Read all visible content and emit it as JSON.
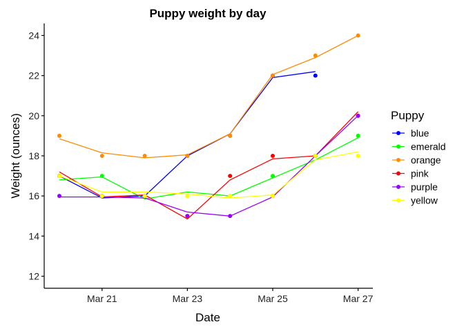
{
  "chart_data": {
    "type": "line",
    "title": "Puppy weight by day",
    "xlabel": "Date",
    "ylabel": "Weight (ounces)",
    "x": [
      "Mar 20",
      "Mar 21",
      "Mar 22",
      "Mar 23",
      "Mar 24",
      "Mar 25",
      "Mar 26",
      "Mar 27"
    ],
    "x_ticks": [
      "Mar 21",
      "Mar 23",
      "Mar 25",
      "Mar 27"
    ],
    "y_ticks": [
      12,
      14,
      16,
      18,
      20,
      22,
      24
    ],
    "ylim": [
      11.4,
      24.6
    ],
    "grid": false,
    "legend": {
      "title": "Puppy",
      "position": "right"
    },
    "series": [
      {
        "name": "blue",
        "color": "#0000ff",
        "points": [
          17,
          16,
          16,
          18,
          19,
          22,
          22,
          null
        ],
        "fit": [
          17.0,
          15.9,
          16.0,
          18.0,
          19.1,
          21.9,
          22.2,
          null
        ]
      },
      {
        "name": "emerald",
        "color": "#00ff00",
        "points": [
          17,
          17,
          16,
          16,
          16,
          17,
          18,
          19
        ],
        "fit": [
          16.8,
          16.95,
          15.85,
          16.2,
          16.0,
          16.9,
          17.8,
          18.9
        ]
      },
      {
        "name": "orange",
        "color": "#ff8c00",
        "points": [
          19,
          18,
          18,
          18,
          19,
          22,
          23,
          24
        ],
        "fit": [
          18.85,
          18.15,
          17.9,
          18.05,
          19.1,
          22.05,
          22.9,
          24.0
        ]
      },
      {
        "name": "pink",
        "color": "#ff0000",
        "points": [
          17,
          16,
          16,
          15,
          17,
          18,
          18,
          20
        ],
        "fit": [
          17.2,
          15.95,
          16.05,
          14.85,
          16.8,
          17.85,
          18.0,
          20.2
        ]
      },
      {
        "name": "purple",
        "color": "#9900ff",
        "points": [
          16,
          16,
          16,
          15,
          15,
          16,
          18,
          20
        ],
        "fit": [
          15.95,
          15.95,
          15.9,
          15.2,
          15.0,
          15.95,
          18.0,
          20.0
        ]
      },
      {
        "name": "yellow",
        "color": "#ffff00",
        "points": [
          17,
          16,
          16,
          16,
          16,
          16,
          18,
          18
        ],
        "fit": [
          17.0,
          16.2,
          16.2,
          16.1,
          15.9,
          16.05,
          17.8,
          18.2
        ]
      }
    ]
  }
}
